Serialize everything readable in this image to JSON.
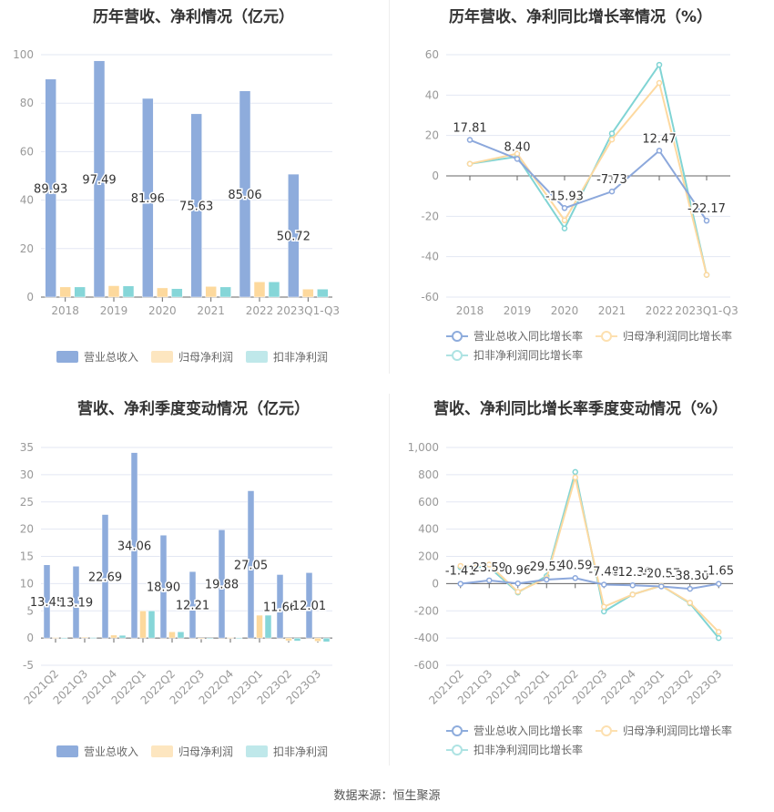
{
  "colors": {
    "blue": "#8eacdc",
    "orange": "#fdd99d",
    "teal": "#86d6d8"
  },
  "footer": "数据来源：恒生聚源",
  "chart_data": [
    {
      "type": "bar",
      "title": "历年营收、净利情况（亿元）",
      "categories": [
        "2018",
        "2019",
        "2020",
        "2021",
        "2022",
        "2023Q1-Q3"
      ],
      "ylim": [
        0,
        100
      ],
      "yticks": [
        0,
        20,
        40,
        60,
        80,
        100
      ],
      "series": [
        {
          "name": "营业总收入",
          "values": [
            89.93,
            97.49,
            81.96,
            75.63,
            85.06,
            50.72
          ],
          "labels": [
            "89.93",
            "97.49",
            "81.96",
            "75.63",
            "85.06",
            "50.72"
          ]
        },
        {
          "name": "归母净利润",
          "values": [
            4.2,
            4.7,
            3.8,
            4.4,
            6.3,
            3.3
          ]
        },
        {
          "name": "扣非净利润",
          "values": [
            4.2,
            4.6,
            3.5,
            4.2,
            6.3,
            3.3
          ]
        }
      ],
      "legend": "bottom"
    },
    {
      "type": "line",
      "title": "历年营收、净利同比增长率情况（%）",
      "categories": [
        "2018",
        "2019",
        "2020",
        "2021",
        "2022",
        "2023Q1-Q3"
      ],
      "ylim": [
        -60,
        60
      ],
      "yticks": [
        -60,
        -40,
        -20,
        0,
        20,
        40,
        60
      ],
      "series": [
        {
          "name": "营业总收入同比增长率",
          "values": [
            17.81,
            8.4,
            -15.93,
            -7.73,
            12.47,
            -22.17
          ],
          "labels": [
            "17.81",
            "8.40",
            "-15.93",
            "-7.73",
            "12.47",
            "-22.17"
          ]
        },
        {
          "name": "归母净利润同比增长率",
          "values": [
            6,
            11,
            -22,
            18,
            46,
            -49
          ]
        },
        {
          "name": "扣非净利润同比增长率",
          "values": [
            6,
            9.5,
            -26,
            21,
            55,
            -49
          ]
        }
      ],
      "legend": "bottom"
    },
    {
      "type": "bar",
      "title": "营收、净利季度变动情况（亿元）",
      "categories": [
        "2021Q2",
        "2021Q3",
        "2021Q4",
        "2022Q1",
        "2022Q2",
        "2022Q3",
        "2022Q4",
        "2023Q1",
        "2023Q2",
        "2023Q3"
      ],
      "ylim": [
        -5,
        35
      ],
      "yticks": [
        -5,
        0,
        5,
        10,
        15,
        20,
        25,
        30,
        35
      ],
      "series": [
        {
          "name": "营业总收入",
          "values": [
            13.45,
            13.19,
            22.69,
            34.06,
            18.9,
            12.21,
            19.88,
            27.05,
            11.66,
            12.01
          ],
          "labels": [
            "13.45",
            "13.19",
            "22.69",
            "34.06",
            "18.90",
            "12.21",
            "19.88",
            "27.05",
            "11.66",
            "12.01"
          ]
        },
        {
          "name": "归母净利润",
          "values": [
            0.1,
            0.15,
            0.55,
            5.0,
            1.15,
            -0.1,
            0.1,
            4.2,
            -0.5,
            -0.6
          ]
        },
        {
          "name": "扣非净利润",
          "values": [
            0.05,
            0.1,
            0.5,
            5.0,
            1.15,
            -0.15,
            0.05,
            4.2,
            -0.55,
            -0.7
          ]
        }
      ],
      "legend": "bottom"
    },
    {
      "type": "line",
      "title": "营收、净利同比增长率季度变动情况（%）",
      "categories": [
        "2021Q2",
        "2021Q3",
        "2021Q4",
        "2022Q1",
        "2022Q2",
        "2022Q3",
        "2022Q4",
        "2023Q1",
        "2023Q2",
        "2023Q3"
      ],
      "ylim": [
        -600,
        1000
      ],
      "yticks": [
        -600,
        -400,
        -200,
        0,
        200,
        400,
        600,
        800,
        1000
      ],
      "ytick_labels": [
        "-600",
        "-400",
        "-200",
        "0",
        "200",
        "400",
        "600",
        "800",
        "1,000"
      ],
      "series": [
        {
          "name": "营业总收入同比增长率",
          "values": [
            -1.41,
            23.59,
            0.96,
            29.53,
            40.59,
            -7.48,
            -12.36,
            -20.57,
            -38.3,
            -1.65
          ],
          "labels": [
            "-1.41",
            "23.59",
            "0.96",
            "29.53",
            "40.59",
            "-7.48",
            "-12.36",
            "-20.57",
            "-38.30",
            "-1.65"
          ]
        },
        {
          "name": "归母净利润同比增长率",
          "values": [
            130,
            140,
            -60,
            40,
            780,
            -170,
            -80,
            -15,
            -140,
            -355
          ]
        },
        {
          "name": "扣非净利润同比增长率",
          "values": [
            120,
            120,
            -65,
            55,
            820,
            -205,
            -80,
            -15,
            -145,
            -400
          ]
        }
      ],
      "legend": "bottom"
    }
  ]
}
